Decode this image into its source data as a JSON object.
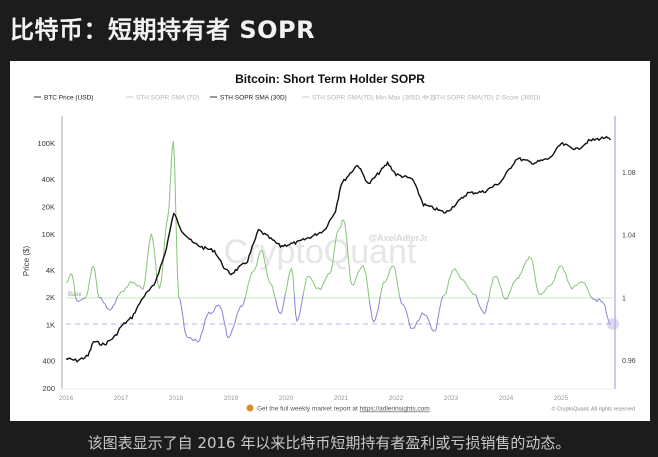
{
  "page": {
    "heading": "比特币：短期持有者 SOPR",
    "caption": "该图表显示了自 2016 年以来比特币短期持有者盈利或亏损销售的动态。"
  },
  "chart_data": {
    "type": "line",
    "title": "Bitcoin: Short Term Holder SOPR",
    "legend": [
      {
        "label": "BTC Price (USD)",
        "color": "#111111",
        "active": true
      },
      {
        "label": "STH SOPR SMA (7D)",
        "color": "#bdbdbd",
        "active": false
      },
      {
        "label": "STH SOPR SMA (30D)",
        "color": "#7cc06a",
        "active": true
      },
      {
        "label": "STH SOPR SMA(7D) Min-Max (365D, 0-1)",
        "color": "#bdbdbd",
        "active": false
      },
      {
        "label": "STH SOPR SMA(7D) Z-Score (365D)",
        "color": "#bdbdbd",
        "active": false
      }
    ],
    "legend_position": "top",
    "ylabel": "Price ($)",
    "y_left_ticks": [
      "100K",
      "40K",
      "20K",
      "10K",
      "4K",
      "2K",
      "1K",
      "400",
      "200"
    ],
    "y_left_scale": "log",
    "y_left_range": [
      200,
      150000
    ],
    "y_right_ticks": [
      "1.08",
      "1.04",
      "1",
      "0.96"
    ],
    "y_right_range": [
      0.95,
      1.1
    ],
    "x_ticks": [
      "2016",
      "2017",
      "2018",
      "2019",
      "2020",
      "2021",
      "2022",
      "2023",
      "2024",
      "2025"
    ],
    "baseline_label": "Base",
    "baseline_value": 1,
    "watermark": "CryptoQuant",
    "author": "@AxelAdlerJr",
    "footer_link_text": "Get the full weekly market report at",
    "footer_link_url": "https://adlerinsights.com",
    "copyright": "© CryptoQuant. All rights reserved",
    "grid": false,
    "series": [
      {
        "name": "BTC Price (USD)",
        "axis": "left",
        "x": [
          2016.0,
          2016.2,
          2016.4,
          2016.5,
          2016.7,
          2016.9,
          2017.0,
          2017.2,
          2017.4,
          2017.6,
          2017.8,
          2017.96,
          2018.1,
          2018.3,
          2018.5,
          2018.7,
          2018.9,
          2019.0,
          2019.3,
          2019.5,
          2019.7,
          2019.9,
          2020.2,
          2020.5,
          2020.7,
          2020.9,
          2021.0,
          2021.3,
          2021.5,
          2021.85,
          2022.0,
          2022.3,
          2022.5,
          2022.9,
          2023.0,
          2023.3,
          2023.6,
          2023.9,
          2024.2,
          2024.5,
          2024.8,
          2025.0,
          2025.3,
          2025.5,
          2025.8,
          2025.9
        ],
        "values": [
          420,
          400,
          450,
          650,
          600,
          750,
          950,
          1200,
          2000,
          2700,
          6000,
          17000,
          11000,
          8000,
          7000,
          6500,
          4000,
          3600,
          5000,
          11000,
          9000,
          7300,
          8000,
          9500,
          11000,
          18000,
          35000,
          58000,
          35000,
          60000,
          45000,
          40000,
          21000,
          17000,
          19000,
          28000,
          29000,
          37000,
          68000,
          60000,
          68000,
          98000,
          85000,
          105000,
          115000,
          108000
        ]
      },
      {
        "name": "STH SOPR SMA (30D)",
        "axis": "right",
        "x": [
          2016.0,
          2016.1,
          2016.2,
          2016.35,
          2016.5,
          2016.6,
          2016.8,
          2017.0,
          2017.2,
          2017.4,
          2017.55,
          2017.7,
          2017.85,
          2017.95,
          2018.05,
          2018.2,
          2018.4,
          2018.6,
          2018.8,
          2018.95,
          2019.2,
          2019.4,
          2019.55,
          2019.7,
          2019.9,
          2020.1,
          2020.2,
          2020.4,
          2020.6,
          2020.8,
          2020.95,
          2021.05,
          2021.2,
          2021.4,
          2021.6,
          2021.8,
          2021.95,
          2022.1,
          2022.3,
          2022.5,
          2022.7,
          2022.85,
          2023.05,
          2023.2,
          2023.4,
          2023.6,
          2023.8,
          2024.0,
          2024.2,
          2024.45,
          2024.6,
          2024.8,
          2025.0,
          2025.2,
          2025.4,
          2025.6,
          2025.75,
          2025.9
        ],
        "values": [
          1.01,
          1.015,
          0.998,
          1.0,
          1.02,
          1.0,
          0.992,
          1.003,
          1.01,
          1.006,
          1.04,
          1.005,
          1.05,
          1.1,
          1.0,
          0.975,
          0.972,
          0.99,
          0.995,
          0.975,
          0.995,
          1.016,
          1.03,
          1.01,
          0.99,
          1.018,
          0.985,
          1.013,
          1.005,
          1.016,
          1.043,
          1.05,
          1.008,
          1.02,
          0.985,
          1.01,
          1.02,
          0.997,
          0.98,
          0.99,
          0.978,
          1.0,
          1.018,
          1.012,
          1.003,
          0.99,
          1.014,
          0.999,
          1.012,
          1.026,
          1.002,
          1.007,
          1.02,
          1.006,
          1.01,
          0.998,
          0.998,
          0.983
        ]
      }
    ]
  }
}
